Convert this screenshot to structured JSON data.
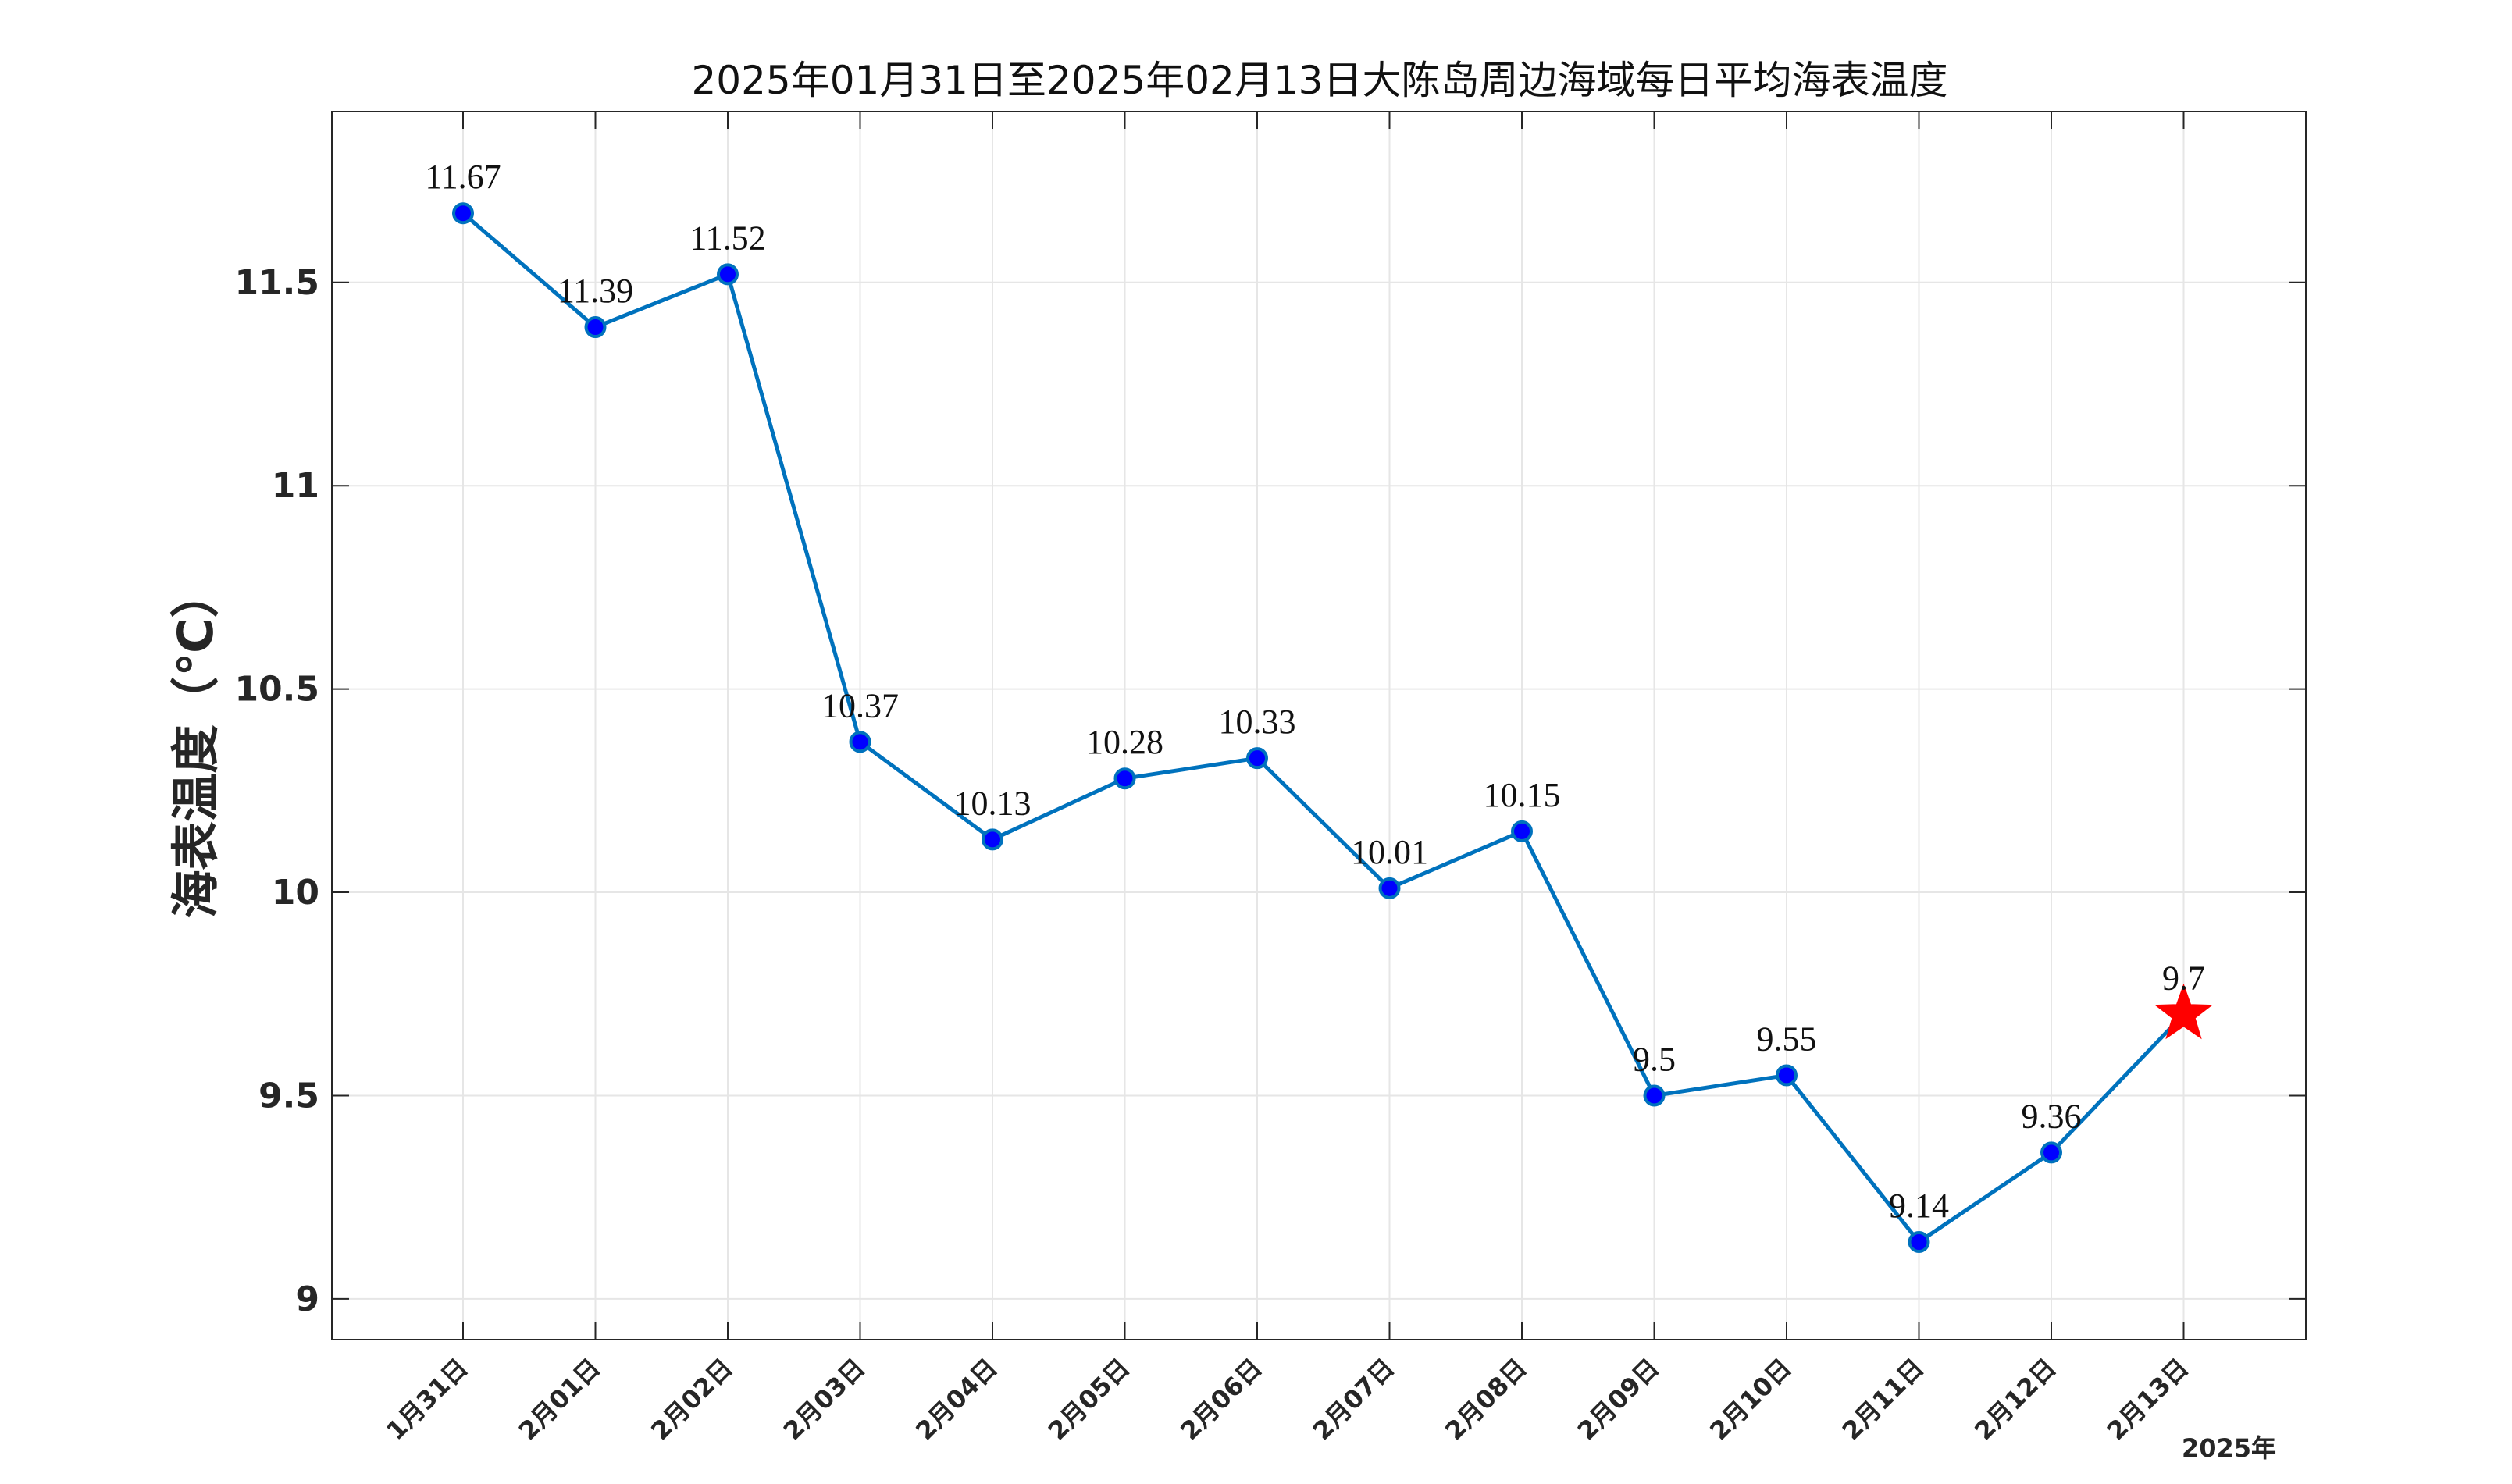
{
  "chart_data": {
    "type": "line",
    "title": "2025年01月31日至2025年02月13日大陈岛周边海域每日平均海表温度",
    "xlabel": "",
    "ylabel": "海表温度（℃）",
    "x_note": "2025年",
    "categories": [
      "1月31日",
      "2月01日",
      "2月02日",
      "2月03日",
      "2月04日",
      "2月05日",
      "2月06日",
      "2月07日",
      "2月08日",
      "2月09日",
      "2月10日",
      "2月11日",
      "2月12日",
      "2月13日"
    ],
    "values": [
      11.67,
      11.39,
      11.52,
      10.37,
      10.13,
      10.28,
      10.33,
      10.01,
      10.15,
      9.5,
      9.55,
      9.14,
      9.36,
      9.7
    ],
    "data_labels": [
      "11.67",
      "11.39",
      "11.52",
      "10.37",
      "10.13",
      "10.28",
      "10.33",
      "10.01",
      "10.15",
      "9.5",
      "9.55",
      "9.14",
      "9.36",
      "9.7"
    ],
    "ylim": [
      8.9,
      11.92
    ],
    "yticks": [
      9,
      9.5,
      10,
      10.5,
      11,
      11.5
    ],
    "ytick_labels": [
      "9",
      "9.5",
      "10",
      "10.5",
      "11",
      "11.5"
    ],
    "grid": true,
    "line_color": "#0072BD",
    "marker_color": "#0000FF",
    "highlight_color": "#FF0000",
    "highlight_marker": "star-icon",
    "highlight_index": 13
  }
}
